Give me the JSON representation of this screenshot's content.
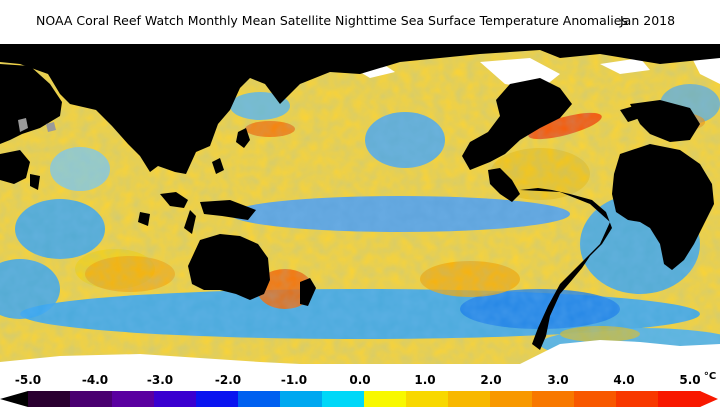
{
  "header": {
    "title": "NOAA Coral Reef Watch Monthly Mean Satellite Nighttime Sea Surface Temperature Anomalies",
    "date": "Jan 2018"
  },
  "map": {
    "land_color": "#000000",
    "ice_color": "#ffffff",
    "ocean_base_color": "#f7d23a"
  },
  "legend": {
    "unit": "°C",
    "min_label": "-5.0",
    "max_label": "5.0",
    "tick_labels": [
      "-5.0",
      "-4.0",
      "-3.0",
      "-2.0",
      "-1.0",
      "0.0",
      "1.0",
      "2.0",
      "3.0",
      "4.0",
      "5.0"
    ],
    "colors": [
      "#2a0030",
      "#4a0070",
      "#5a00a0",
      "#3a00d0",
      "#0a14f0",
      "#0060f0",
      "#00a8f0",
      "#00d8f8",
      "#f8f800",
      "#f8d800",
      "#f8b800",
      "#f89800",
      "#f87800",
      "#f85800",
      "#f83800",
      "#f81800"
    ]
  }
}
